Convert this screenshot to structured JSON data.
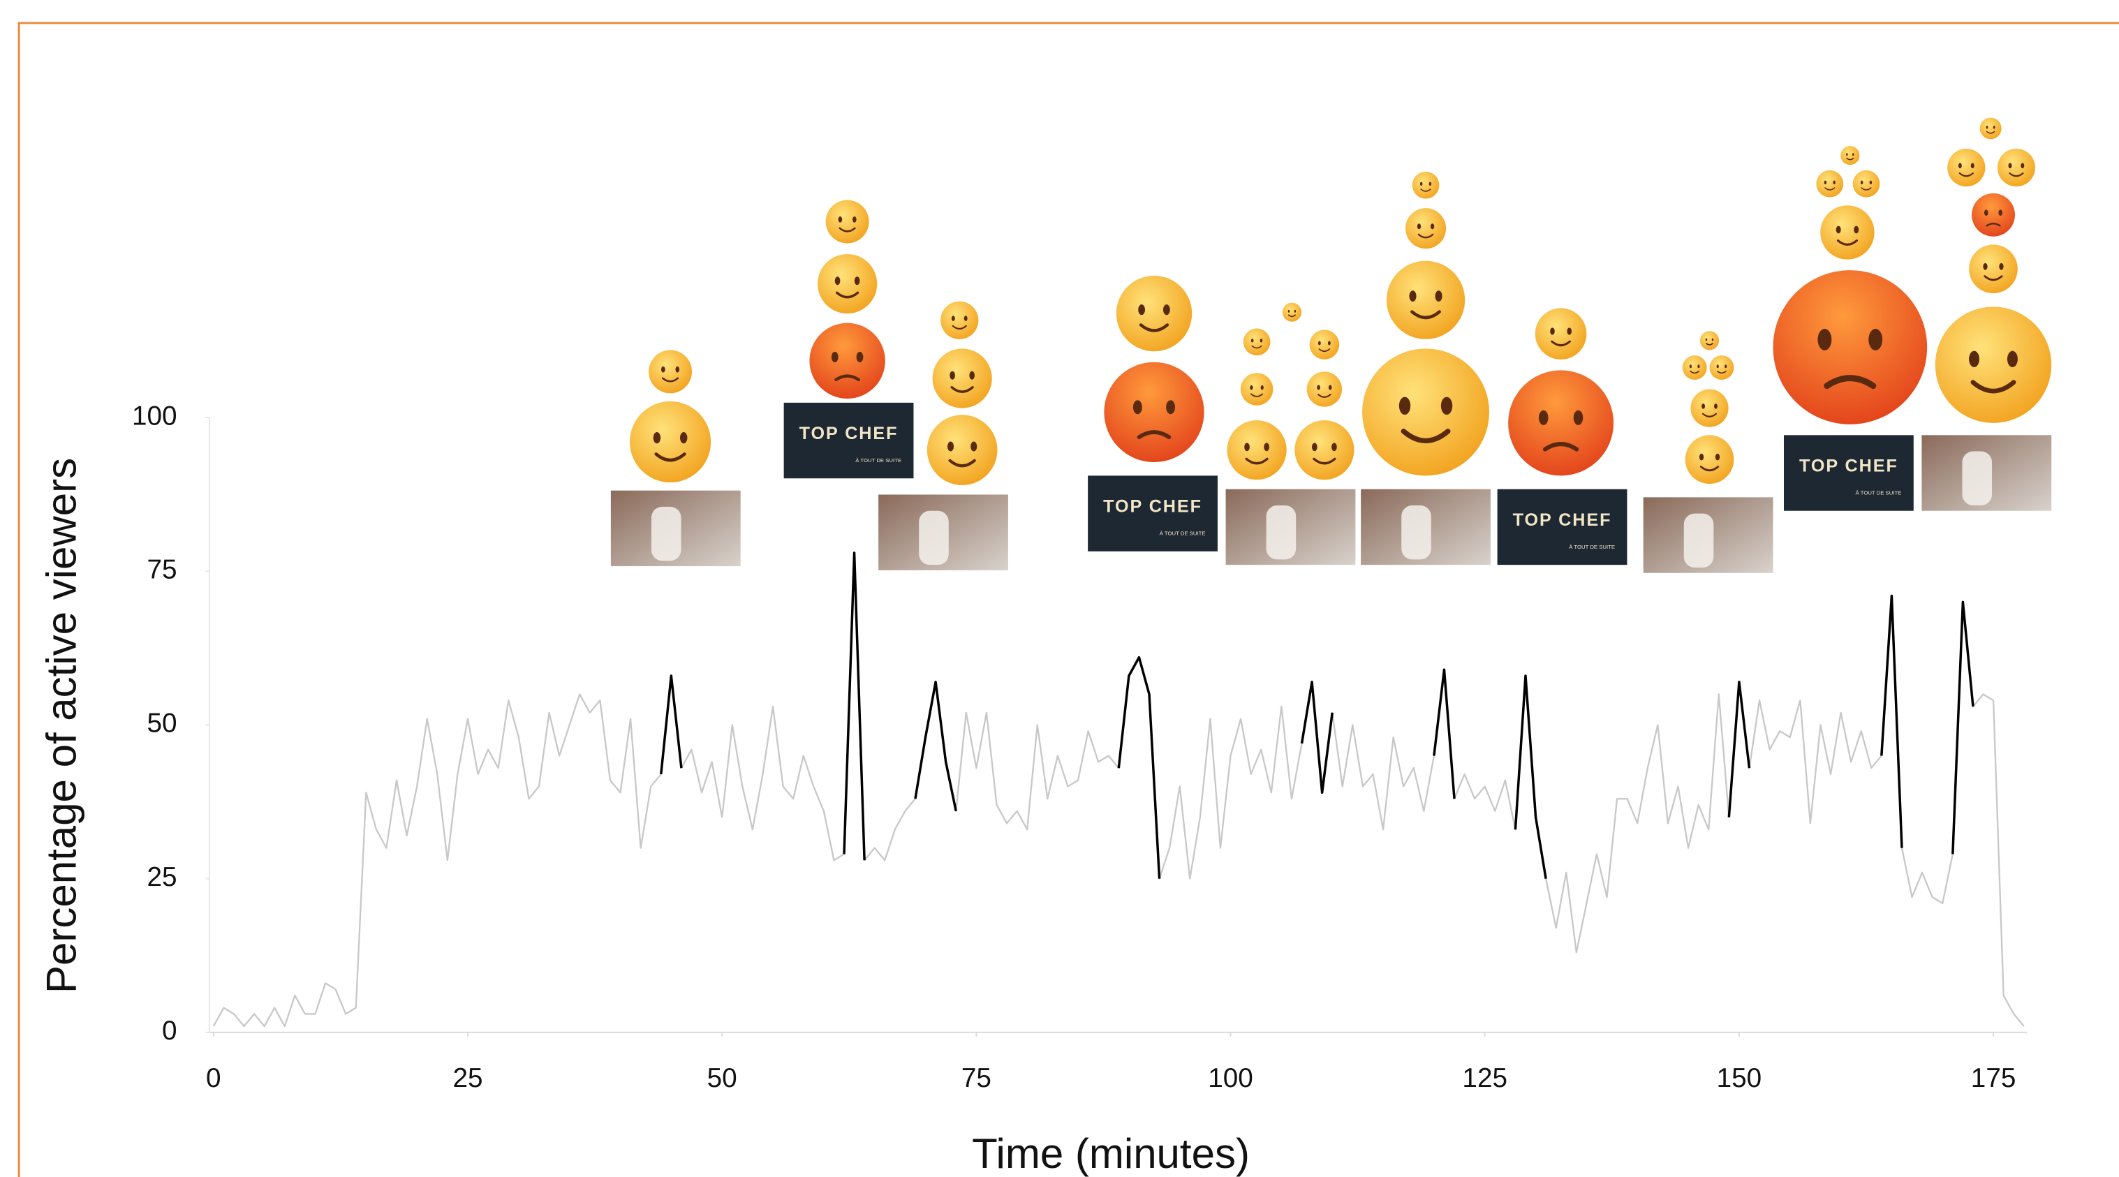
{
  "chart_data": {
    "type": "line",
    "xlabel": "Time (minutes)",
    "ylabel": "Percentage of active viewers",
    "x": [
      0,
      1,
      2,
      3,
      4,
      5,
      6,
      7,
      8,
      9,
      10,
      11,
      12,
      13,
      14,
      15,
      16,
      17,
      18,
      19,
      20,
      21,
      22,
      23,
      24,
      25,
      26,
      27,
      28,
      29,
      30,
      31,
      32,
      33,
      34,
      35,
      36,
      37,
      38,
      39,
      40,
      41,
      42,
      43,
      44,
      45,
      46,
      47,
      48,
      49,
      50,
      51,
      52,
      53,
      54,
      55,
      56,
      57,
      58,
      59,
      60,
      61,
      62,
      63,
      64,
      65,
      66,
      67,
      68,
      69,
      70,
      71,
      72,
      73,
      74,
      75,
      76,
      77,
      78,
      79,
      80,
      81,
      82,
      83,
      84,
      85,
      86,
      87,
      88,
      89,
      90,
      91,
      92,
      93,
      94,
      95,
      96,
      97,
      98,
      99,
      100,
      101,
      102,
      103,
      104,
      105,
      106,
      107,
      108,
      109,
      110,
      111,
      112,
      113,
      114,
      115,
      116,
      117,
      118,
      119,
      120,
      121,
      122,
      123,
      124,
      125,
      126,
      127,
      128,
      129,
      130,
      131,
      132,
      133,
      134,
      135,
      136,
      137,
      138,
      139,
      140,
      141,
      142,
      143,
      144,
      145,
      146,
      147,
      148,
      149,
      150,
      151,
      152,
      153,
      154,
      155,
      156,
      157,
      158,
      159,
      160,
      161,
      162,
      163,
      164,
      165,
      166,
      167,
      168,
      169,
      170,
      171,
      172,
      173,
      174,
      175,
      176,
      177,
      178
    ],
    "series": [
      {
        "color": "#c8c8c8",
        "values": [
          1,
          4,
          3,
          1,
          3,
          1,
          4,
          1,
          6,
          3,
          3,
          8,
          7,
          3,
          4,
          39,
          33,
          30,
          41,
          32,
          40,
          51,
          42,
          28,
          42,
          51,
          42,
          46,
          43,
          54,
          48,
          38,
          40,
          52,
          45,
          50,
          55,
          52,
          54,
          41,
          39,
          51,
          30,
          40,
          42,
          58,
          43,
          46,
          39,
          44,
          35,
          50,
          40,
          33,
          42,
          53,
          40,
          38,
          45,
          40,
          36,
          28,
          29,
          78,
          28,
          30,
          28,
          33,
          36,
          38,
          48,
          57,
          44,
          36,
          52,
          43,
          52,
          37,
          34,
          36,
          33,
          50,
          38,
          45,
          40,
          41,
          49,
          44,
          45,
          43,
          58,
          61,
          55,
          25,
          30,
          40,
          25,
          35,
          51,
          30,
          45,
          51,
          42,
          46,
          39,
          53,
          38,
          47,
          57,
          39,
          52,
          40,
          50,
          40,
          42,
          33,
          48,
          40,
          43,
          36,
          45,
          59,
          38,
          42,
          38,
          40,
          36,
          41,
          33,
          58,
          35,
          25,
          17,
          26,
          13,
          21,
          29,
          22,
          38,
          38,
          34,
          43,
          50,
          34,
          40,
          30,
          37,
          33,
          55,
          35,
          57,
          43,
          54,
          46,
          49,
          48,
          54,
          34,
          50,
          42,
          52,
          44,
          49,
          43,
          45,
          71,
          30,
          22,
          26,
          22,
          21,
          29,
          70,
          53,
          55,
          54,
          6,
          3,
          1
        ]
      },
      {
        "color": "#000000",
        "values": [
          null,
          null,
          null,
          null,
          null,
          null,
          null,
          null,
          null,
          null,
          null,
          null,
          null,
          null,
          null,
          null,
          null,
          null,
          null,
          null,
          null,
          null,
          null,
          null,
          null,
          null,
          null,
          null,
          null,
          null,
          null,
          null,
          null,
          null,
          null,
          null,
          null,
          null,
          null,
          null,
          null,
          null,
          null,
          null,
          42,
          58,
          43,
          null,
          null,
          null,
          null,
          null,
          null,
          null,
          null,
          null,
          null,
          null,
          null,
          null,
          null,
          null,
          29,
          78,
          28,
          null,
          null,
          null,
          null,
          38,
          48,
          57,
          44,
          36,
          null,
          null,
          null,
          null,
          null,
          null,
          null,
          null,
          null,
          null,
          null,
          null,
          null,
          null,
          null,
          43,
          58,
          61,
          55,
          25,
          null,
          null,
          null,
          null,
          null,
          null,
          null,
          null,
          null,
          null,
          null,
          null,
          null,
          47,
          57,
          39,
          52,
          null,
          null,
          null,
          null,
          null,
          null,
          null,
          null,
          null,
          45,
          59,
          38,
          null,
          null,
          null,
          null,
          null,
          33,
          58,
          35,
          25,
          null,
          null,
          null,
          null,
          null,
          null,
          null,
          null,
          null,
          null,
          null,
          null,
          null,
          null,
          null,
          null,
          null,
          35,
          57,
          43,
          null,
          null,
          null,
          null,
          null,
          null,
          null,
          null,
          null,
          null,
          null,
          null,
          45,
          71,
          30,
          null,
          null,
          null,
          null,
          29,
          70,
          53,
          null,
          null,
          null,
          null,
          null
        ]
      }
    ],
    "xlim": [
      0,
      178
    ],
    "ylim": [
      0,
      100
    ],
    "xticks": [
      0,
      25,
      50,
      75,
      100,
      125,
      150,
      175
    ],
    "yticks": [
      0,
      25,
      50,
      75,
      100
    ],
    "thumbnail_logo": "TOP CHEF",
    "thumbnail_tagline": "À TOUT DE SUITE"
  }
}
